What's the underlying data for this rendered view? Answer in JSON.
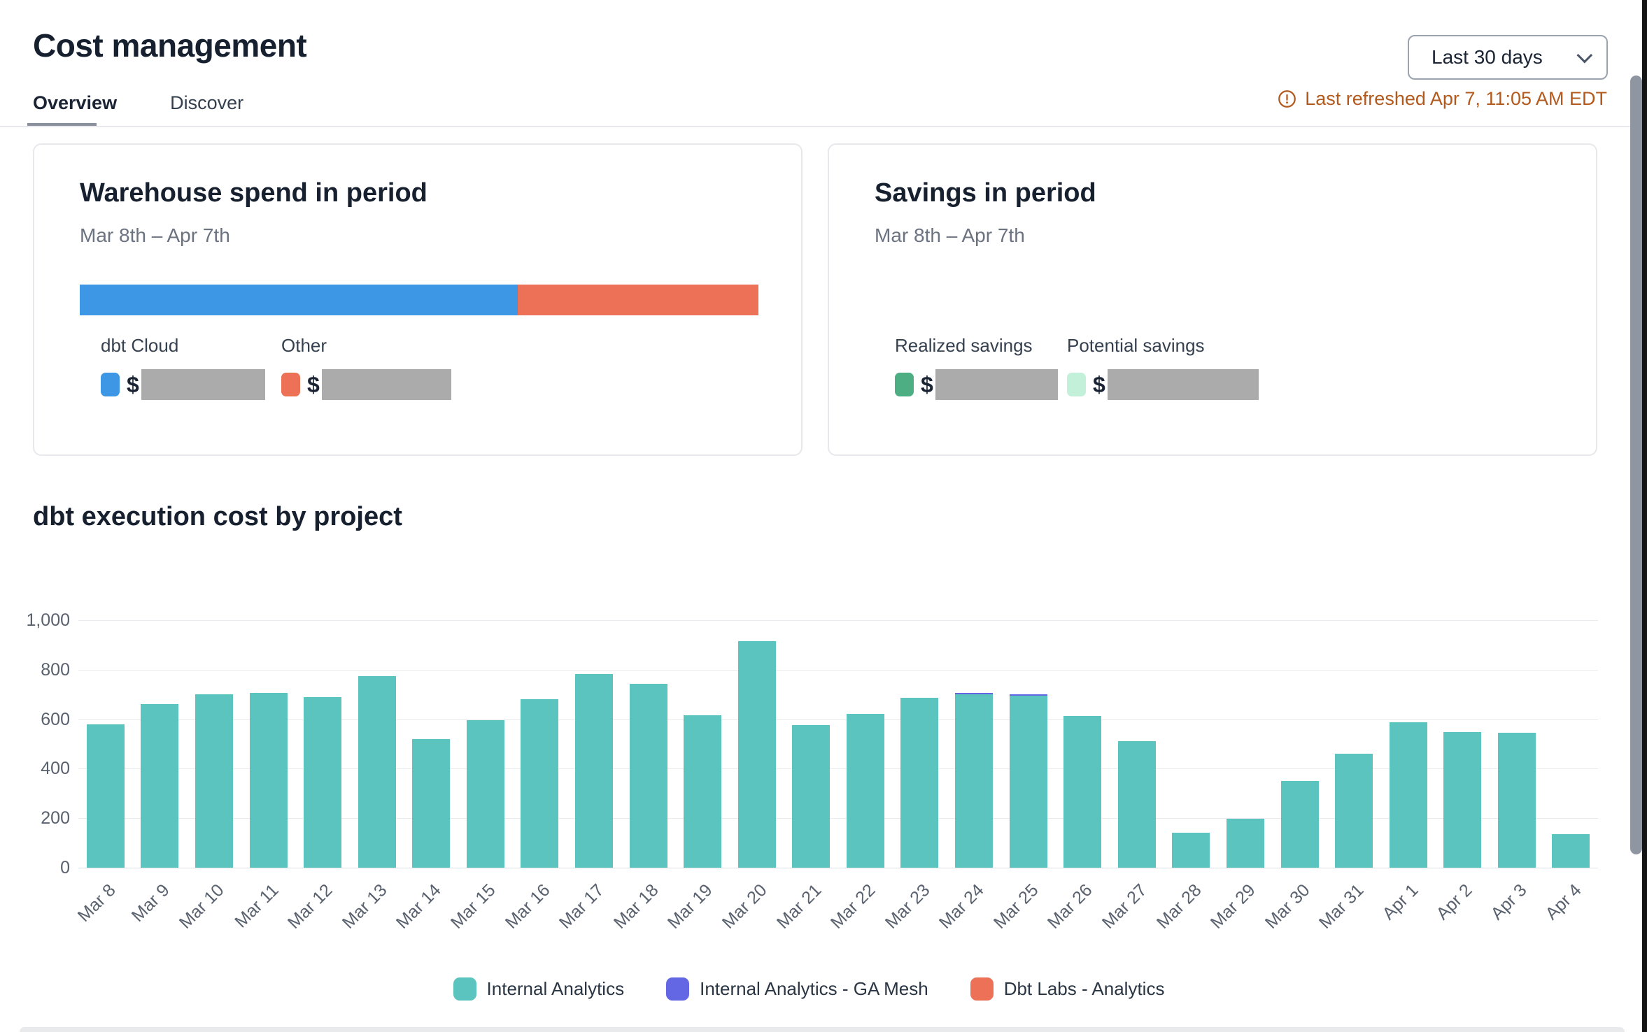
{
  "header": {
    "title": "Cost management",
    "tabs": [
      {
        "label": "Overview",
        "active": true
      },
      {
        "label": "Discover",
        "active": false
      }
    ],
    "period_selector": {
      "value": "Last 30 days"
    },
    "last_refreshed": "Last refreshed Apr 7, 11:05 AM EDT",
    "warning_color": "#b25a1e"
  },
  "warehouse_card": {
    "title": "Warehouse spend in period",
    "subtitle": "Mar 8th – Apr 7th",
    "split": {
      "dbt_cloud_pct": 64.5,
      "other_pct": 35.5
    },
    "legend": [
      {
        "label": "dbt Cloud",
        "prefix": "$",
        "color": "#3e97e5",
        "value_redacted": true
      },
      {
        "label": "Other",
        "prefix": "$",
        "color": "#ec7156",
        "value_redacted": true
      }
    ]
  },
  "savings_card": {
    "title": "Savings in period",
    "subtitle": "Mar 8th – Apr 7th",
    "legend": [
      {
        "label": "Realized savings",
        "prefix": "$",
        "color": "#4cae82",
        "value_redacted": true
      },
      {
        "label": "Potential savings",
        "prefix": "$",
        "color": "#c3f0d9",
        "value_redacted": true
      }
    ]
  },
  "chart_data": {
    "type": "bar",
    "title": "dbt execution cost by project",
    "stacked": true,
    "grid": true,
    "legend_position": "bottom",
    "ylim": [
      0,
      1000
    ],
    "yticks": [
      {
        "value": 1000,
        "label": "1,000"
      },
      {
        "value": 800,
        "label": "800"
      },
      {
        "value": 600,
        "label": "600"
      },
      {
        "value": 400,
        "label": "400"
      },
      {
        "value": 200,
        "label": "200"
      },
      {
        "value": 0,
        "label": "0"
      }
    ],
    "categories": [
      "Mar 8",
      "Mar 9",
      "Mar 10",
      "Mar 11",
      "Mar 12",
      "Mar 13",
      "Mar 14",
      "Mar 15",
      "Mar 16",
      "Mar 17",
      "Mar 18",
      "Mar 19",
      "Mar 20",
      "Mar 21",
      "Mar 22",
      "Mar 23",
      "Mar 24",
      "Mar 25",
      "Mar 26",
      "Mar 27",
      "Mar 28",
      "Mar 29",
      "Mar 30",
      "Mar 31",
      "Apr 1",
      "Apr 2",
      "Apr 3",
      "Apr 4"
    ],
    "series": [
      {
        "name": "Internal Analytics",
        "color": "#5bc4bf",
        "values": [
          580,
          660,
          700,
          705,
          690,
          775,
          520,
          595,
          680,
          782,
          742,
          617,
          915,
          575,
          622,
          687,
          700,
          695,
          612,
          510,
          142,
          197,
          349,
          460,
          588,
          549,
          545,
          136
        ]
      },
      {
        "name": "Internal Analytics - GA Mesh",
        "color": "#6467e4",
        "values": [
          0,
          0,
          0,
          0,
          0,
          0,
          0,
          0,
          0,
          0,
          0,
          0,
          0,
          0,
          0,
          0,
          6,
          6,
          0,
          0,
          0,
          0,
          0,
          0,
          0,
          0,
          0,
          0
        ]
      },
      {
        "name": "Dbt Labs - Analytics",
        "color": "#ec7156",
        "values": [
          0,
          0,
          0,
          0,
          0,
          0,
          0,
          0,
          0,
          0,
          0,
          0,
          0,
          0,
          0,
          0,
          0,
          0,
          0,
          0,
          0,
          0,
          0,
          0,
          0,
          0,
          0,
          0
        ]
      }
    ]
  }
}
